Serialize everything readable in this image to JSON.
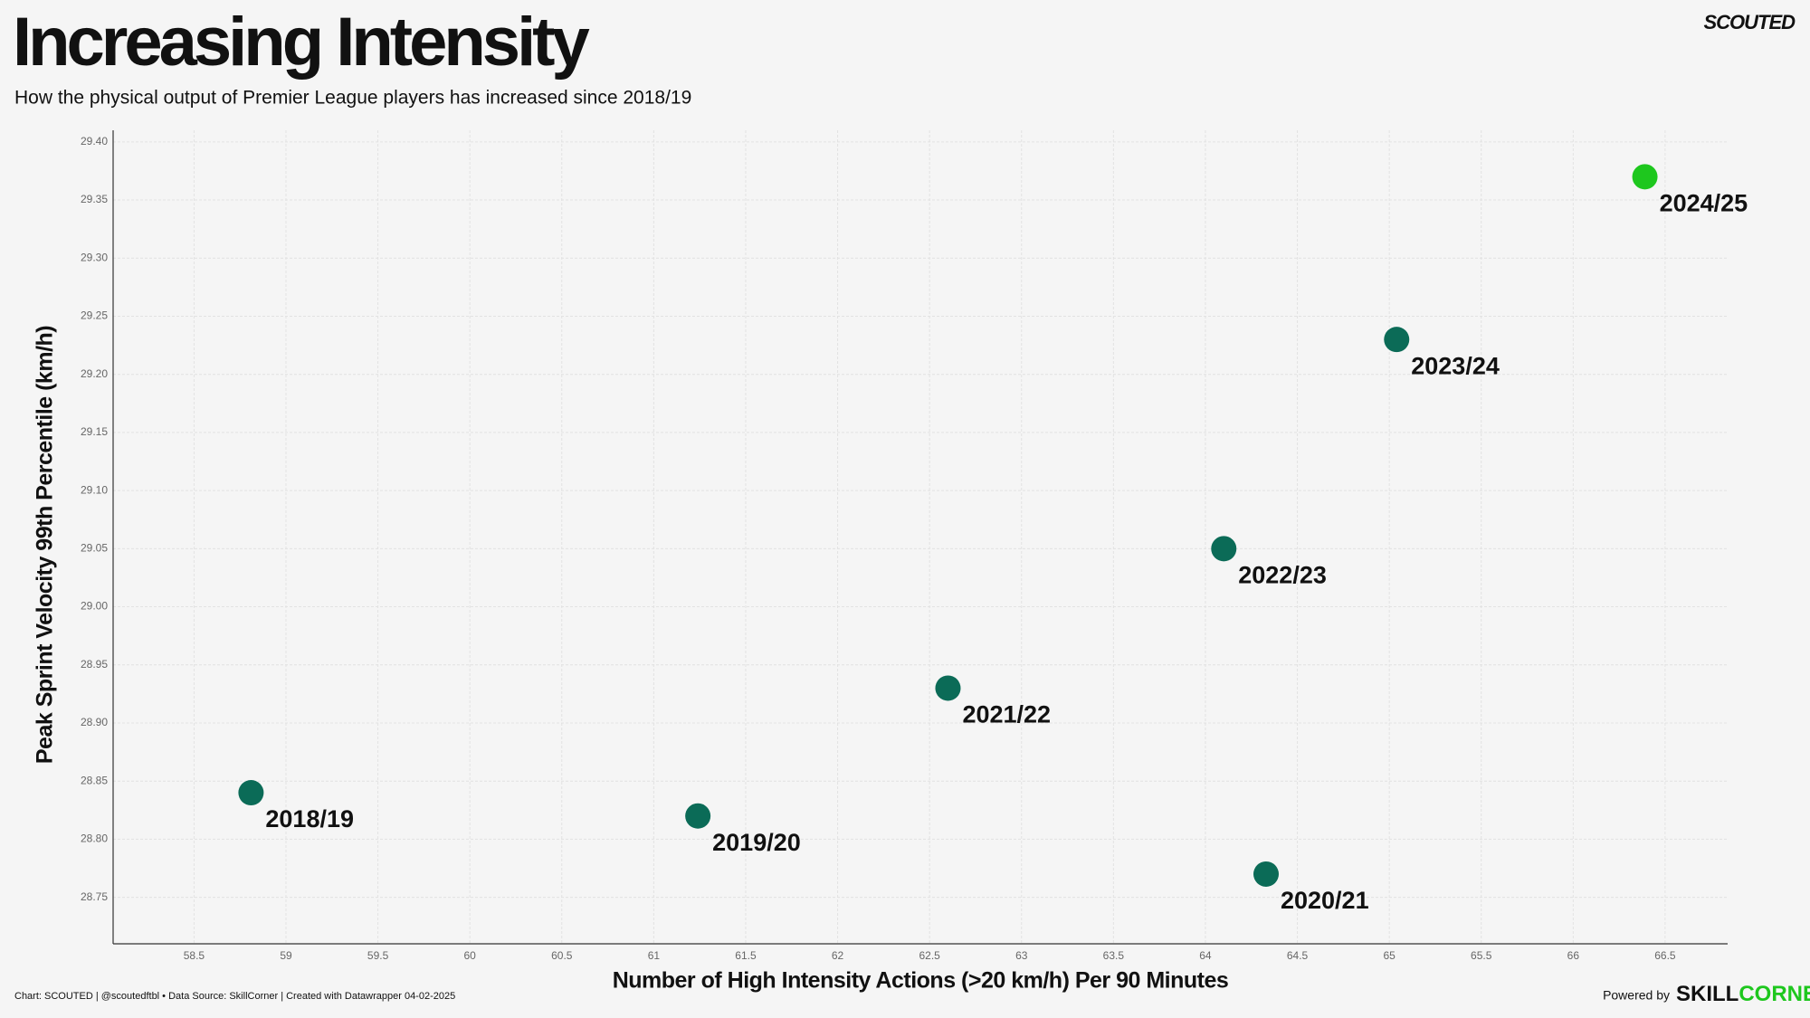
{
  "chart_data": {
    "type": "scatter",
    "title": "Increasing Intensity",
    "subtitle": "How the physical output of Premier League players has increased since 2018/19",
    "x_label": "Number of High Intensity Actions (>20 km/h) Per 90 Minutes",
    "y_label": "Peak Sprint Velocity 99th Percentile (km/h)",
    "labels": [
      "2018/19",
      "2019/20",
      "2020/21",
      "2021/22",
      "2022/23",
      "2023/24",
      "2024/25"
    ],
    "x": [
      58.81,
      61.24,
      64.33,
      62.6,
      64.1,
      65.04,
      66.39
    ],
    "values": [
      28.84,
      28.82,
      28.77,
      28.93,
      29.05,
      29.23,
      29.37
    ],
    "colors": [
      "#0b6b57",
      "#0b6b57",
      "#0b6b57",
      "#0b6b57",
      "#0b6b57",
      "#0b6b57",
      "#1ec71e"
    ],
    "xlim": [
      58.06,
      66.84
    ],
    "ylim": [
      28.71,
      29.41
    ],
    "xticks": [
      58.5,
      59,
      59.5,
      60,
      60.5,
      61,
      61.5,
      62,
      62.5,
      63,
      63.5,
      64,
      64.5,
      65,
      65.5,
      66,
      66.5
    ],
    "yticks": [
      {
        "value": 28.75,
        "label": "28.75"
      },
      {
        "value": 28.8,
        "label": "28.80"
      },
      28.85,
      {
        "value": 28.9,
        "label": "28.90"
      },
      28.95,
      {
        "value": 29.0,
        "label": "29.00"
      },
      29.05,
      {
        "value": 29.1,
        "label": "29.10"
      },
      29.15,
      {
        "value": 29.2,
        "label": "29.20"
      },
      29.25,
      {
        "value": 29.3,
        "label": "29.30"
      },
      29.35,
      {
        "value": 29.4,
        "label": "29.40"
      }
    ],
    "grid": true
  },
  "branding": {
    "logo": "SCOUTED",
    "credit": "Chart: SCOUTED | @scoutedftbl • Data Source: SkillCorner | Created with Datawrapper 04-02-2025",
    "powered_by": "Powered by",
    "partner_a": "SKILL",
    "partner_b": "CORNER"
  }
}
